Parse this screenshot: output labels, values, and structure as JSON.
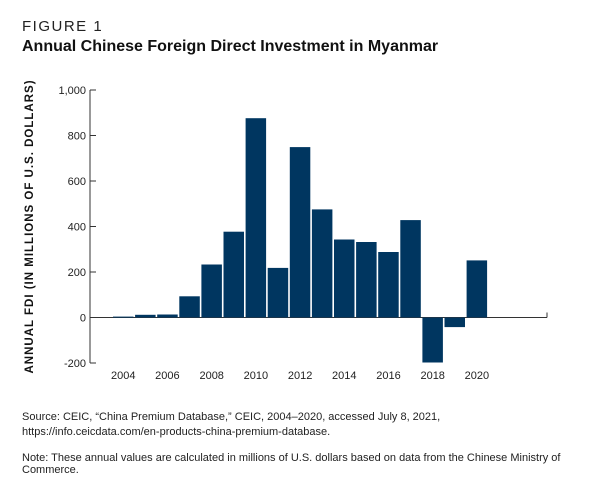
{
  "figure_label": "FIGURE 1",
  "title": "Annual Chinese Foreign Direct Investment in Myanmar",
  "source_line1": "Source: CEIC, “China Premium Database,” CEIC, 2004–2020, accessed July 8, 2021,",
  "source_line2": "https://info.ceicdata.com/en-products-china-premium-database.",
  "note": "Note: These annual values are calculated in millions of U.S. dollars based on data from the Chinese Ministry of Commerce.",
  "colors": {
    "bar": "#003660",
    "axis": "#333333"
  },
  "chart_data": {
    "type": "bar",
    "title": "Annual Chinese Foreign Direct Investment in Myanmar",
    "xlabel": "",
    "ylabel": "ANNUAL FDI (IN MILLIONS OF U.S. DOLLARS)",
    "categories": [
      "2004",
      "2005",
      "2006",
      "2007",
      "2008",
      "2009",
      "2010",
      "2011",
      "2012",
      "2013",
      "2014",
      "2015",
      "2016",
      "2017",
      "2018",
      "2019",
      "2020"
    ],
    "values": [
      4,
      12,
      13,
      93,
      233,
      377,
      876,
      218,
      749,
      475,
      343,
      332,
      288,
      428,
      -198,
      -42,
      251
    ],
    "xtick_labels": [
      "2004",
      "2006",
      "2008",
      "2010",
      "2012",
      "2014",
      "2016",
      "2018",
      "2020"
    ],
    "ytick_labels": [
      "1,000",
      "800",
      "600",
      "400",
      "200",
      "0",
      "-200"
    ],
    "ytick_values": [
      1000,
      800,
      600,
      400,
      200,
      0,
      -200
    ],
    "ylim": [
      -200,
      1000
    ],
    "grid": false,
    "legend": "none"
  }
}
